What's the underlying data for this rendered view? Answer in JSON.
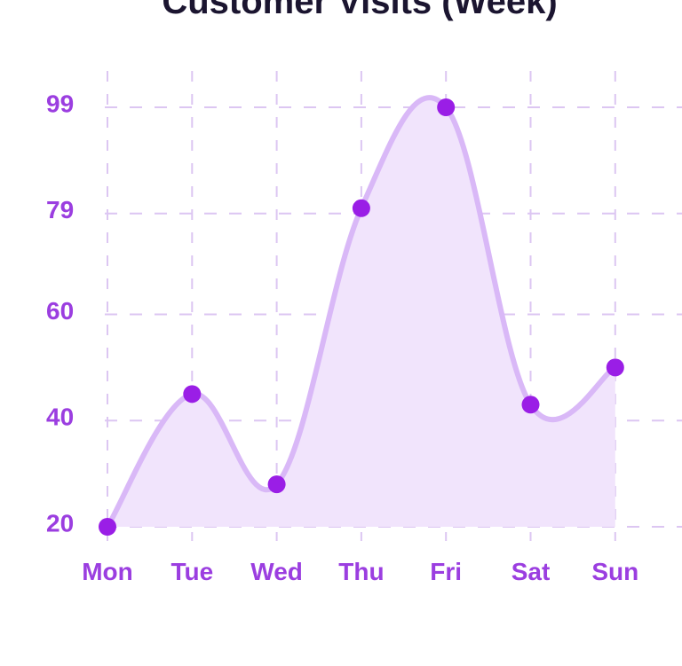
{
  "chart_data": {
    "type": "area",
    "title": "Customer Visits (Week)",
    "xlabel": "",
    "ylabel": "",
    "categories": [
      "Mon",
      "Tue",
      "Wed",
      "Thu",
      "Fri",
      "Sat",
      "Sun"
    ],
    "values": [
      20,
      45,
      28,
      80,
      99,
      43,
      50
    ],
    "y_ticks": [
      20,
      40,
      60,
      79,
      99
    ],
    "ylim": [
      20,
      99
    ],
    "grid": true,
    "legend": "none",
    "colors": {
      "line": "#d9b8f7",
      "fill": "#f1e4fc",
      "point": "#9a1ee6",
      "tick_label": "#9b3ee0",
      "grid": "#dcc6f2",
      "title": "#1b1530"
    }
  }
}
